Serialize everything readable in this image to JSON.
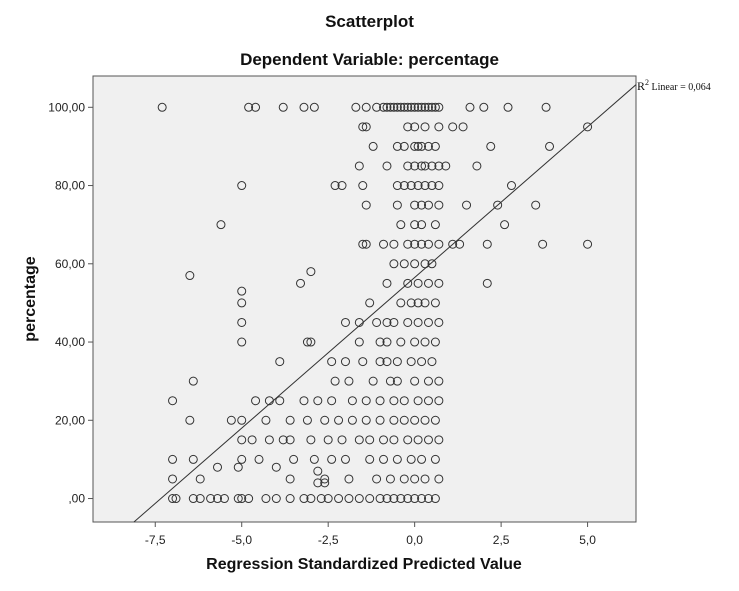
{
  "chart_data": {
    "type": "scatter",
    "title": "Scatterplot",
    "subtitle": "Dependent Variable: percentage",
    "xlabel": "Regression Standardized Predicted Value",
    "ylabel": "percentage",
    "xlim": [
      -9.3,
      6.4
    ],
    "ylim": [
      -6,
      108
    ],
    "x_ticks": [
      -7.5,
      -5.0,
      -2.5,
      0.0,
      2.5,
      5.0
    ],
    "x_tick_labels": [
      "-7,5",
      "-5,0",
      "-2,5",
      "0,0",
      "2,5",
      "5,0"
    ],
    "y_ticks": [
      0,
      20,
      40,
      60,
      80,
      100
    ],
    "y_tick_labels": [
      ",00",
      "20,00",
      "40,00",
      "60,00",
      "80,00",
      "100,00"
    ],
    "grid": false,
    "plot_background": "#f0f0f0",
    "point_color": "#333333",
    "fit_line": {
      "label_r": "R",
      "label_sup": "2",
      "label_text": " Linear = 0,064",
      "slope": 7.7,
      "intercept": 56.5
    },
    "points": [
      [
        -7.3,
        100
      ],
      [
        -4.8,
        100
      ],
      [
        -4.6,
        100
      ],
      [
        -3.8,
        100
      ],
      [
        -3.2,
        100
      ],
      [
        -2.9,
        100
      ],
      [
        -1.7,
        100
      ],
      [
        -1.4,
        100
      ],
      [
        -1.1,
        100
      ],
      [
        -0.9,
        100
      ],
      [
        -0.8,
        100
      ],
      [
        -0.7,
        100
      ],
      [
        -0.6,
        100
      ],
      [
        -0.5,
        100
      ],
      [
        -0.4,
        100
      ],
      [
        -0.3,
        100
      ],
      [
        -0.2,
        100
      ],
      [
        -0.1,
        100
      ],
      [
        0.0,
        100
      ],
      [
        0.1,
        100
      ],
      [
        0.2,
        100
      ],
      [
        0.3,
        100
      ],
      [
        0.4,
        100
      ],
      [
        0.5,
        100
      ],
      [
        0.6,
        100
      ],
      [
        0.7,
        100
      ],
      [
        1.6,
        100
      ],
      [
        2.0,
        100
      ],
      [
        2.7,
        100
      ],
      [
        3.8,
        100
      ],
      [
        -1.5,
        95
      ],
      [
        -1.4,
        95
      ],
      [
        -0.2,
        95
      ],
      [
        0.0,
        95
      ],
      [
        0.3,
        95
      ],
      [
        0.7,
        95
      ],
      [
        1.1,
        95
      ],
      [
        1.4,
        95
      ],
      [
        5.0,
        95
      ],
      [
        -1.2,
        90
      ],
      [
        -0.5,
        90
      ],
      [
        -0.3,
        90
      ],
      [
        0.0,
        90
      ],
      [
        0.1,
        90
      ],
      [
        0.2,
        90
      ],
      [
        0.4,
        90
      ],
      [
        0.6,
        90
      ],
      [
        2.2,
        90
      ],
      [
        3.9,
        90
      ],
      [
        -1.6,
        85
      ],
      [
        -0.8,
        85
      ],
      [
        -0.2,
        85
      ],
      [
        0.0,
        85
      ],
      [
        0.2,
        85
      ],
      [
        0.3,
        85
      ],
      [
        0.5,
        85
      ],
      [
        0.7,
        85
      ],
      [
        0.9,
        85
      ],
      [
        1.8,
        85
      ],
      [
        -5.0,
        80
      ],
      [
        -2.3,
        80
      ],
      [
        -2.1,
        80
      ],
      [
        -1.5,
        80
      ],
      [
        -0.5,
        80
      ],
      [
        -0.3,
        80
      ],
      [
        -0.1,
        80
      ],
      [
        0.1,
        80
      ],
      [
        0.3,
        80
      ],
      [
        0.5,
        80
      ],
      [
        0.7,
        80
      ],
      [
        2.8,
        80
      ],
      [
        -1.4,
        75
      ],
      [
        -0.5,
        75
      ],
      [
        0.0,
        75
      ],
      [
        0.2,
        75
      ],
      [
        0.4,
        75
      ],
      [
        0.7,
        75
      ],
      [
        1.5,
        75
      ],
      [
        2.4,
        75
      ],
      [
        3.5,
        75
      ],
      [
        -5.6,
        70
      ],
      [
        -0.4,
        70
      ],
      [
        0.0,
        70
      ],
      [
        0.2,
        70
      ],
      [
        0.6,
        70
      ],
      [
        2.6,
        70
      ],
      [
        -1.5,
        65
      ],
      [
        -1.4,
        65
      ],
      [
        -0.9,
        65
      ],
      [
        -0.6,
        65
      ],
      [
        -0.2,
        65
      ],
      [
        0.0,
        65
      ],
      [
        0.2,
        65
      ],
      [
        0.4,
        65
      ],
      [
        0.7,
        65
      ],
      [
        1.1,
        65
      ],
      [
        1.3,
        65
      ],
      [
        2.1,
        65
      ],
      [
        3.7,
        65
      ],
      [
        5.0,
        65
      ],
      [
        -0.6,
        60
      ],
      [
        -0.3,
        60
      ],
      [
        0.0,
        60
      ],
      [
        0.3,
        60
      ],
      [
        0.5,
        60
      ],
      [
        -6.5,
        57
      ],
      [
        -3.0,
        58
      ],
      [
        -0.8,
        55
      ],
      [
        -0.2,
        55
      ],
      [
        0.1,
        55
      ],
      [
        0.4,
        55
      ],
      [
        0.7,
        55
      ],
      [
        2.1,
        55
      ],
      [
        -3.3,
        55
      ],
      [
        -5.0,
        53
      ],
      [
        -5.0,
        50
      ],
      [
        -1.3,
        50
      ],
      [
        -0.4,
        50
      ],
      [
        -0.1,
        50
      ],
      [
        0.1,
        50
      ],
      [
        0.3,
        50
      ],
      [
        0.6,
        50
      ],
      [
        -5.0,
        45
      ],
      [
        -2.0,
        45
      ],
      [
        -1.6,
        45
      ],
      [
        -1.1,
        45
      ],
      [
        -0.8,
        45
      ],
      [
        -0.6,
        45
      ],
      [
        -0.2,
        45
      ],
      [
        0.1,
        45
      ],
      [
        0.4,
        45
      ],
      [
        0.7,
        45
      ],
      [
        -5.0,
        40
      ],
      [
        -3.1,
        40
      ],
      [
        -3.0,
        40
      ],
      [
        -1.6,
        40
      ],
      [
        -1.0,
        40
      ],
      [
        -0.8,
        40
      ],
      [
        -0.4,
        40
      ],
      [
        0.0,
        40
      ],
      [
        0.3,
        40
      ],
      [
        0.6,
        40
      ],
      [
        -3.9,
        35
      ],
      [
        -2.4,
        35
      ],
      [
        -2.0,
        35
      ],
      [
        -1.5,
        35
      ],
      [
        -1.0,
        35
      ],
      [
        -0.8,
        35
      ],
      [
        -0.5,
        35
      ],
      [
        -0.1,
        35
      ],
      [
        0.2,
        35
      ],
      [
        0.5,
        35
      ],
      [
        -6.4,
        30
      ],
      [
        -2.3,
        30
      ],
      [
        -1.9,
        30
      ],
      [
        -1.2,
        30
      ],
      [
        -0.7,
        30
      ],
      [
        -0.5,
        30
      ],
      [
        0.0,
        30
      ],
      [
        0.4,
        30
      ],
      [
        0.7,
        30
      ],
      [
        -7.0,
        25
      ],
      [
        -4.6,
        25
      ],
      [
        -4.2,
        25
      ],
      [
        -3.9,
        25
      ],
      [
        -3.2,
        25
      ],
      [
        -2.8,
        25
      ],
      [
        -2.4,
        25
      ],
      [
        -1.8,
        25
      ],
      [
        -1.4,
        25
      ],
      [
        -1.0,
        25
      ],
      [
        -0.6,
        25
      ],
      [
        -0.3,
        25
      ],
      [
        0.1,
        25
      ],
      [
        0.4,
        25
      ],
      [
        0.7,
        25
      ],
      [
        -6.5,
        20
      ],
      [
        -5.3,
        20
      ],
      [
        -5.0,
        20
      ],
      [
        -4.3,
        20
      ],
      [
        -3.6,
        20
      ],
      [
        -3.1,
        20
      ],
      [
        -2.6,
        20
      ],
      [
        -2.2,
        20
      ],
      [
        -1.8,
        20
      ],
      [
        -1.4,
        20
      ],
      [
        -1.0,
        20
      ],
      [
        -0.6,
        20
      ],
      [
        -0.3,
        20
      ],
      [
        0.0,
        20
      ],
      [
        0.3,
        20
      ],
      [
        0.6,
        20
      ],
      [
        -5.0,
        15
      ],
      [
        -4.7,
        15
      ],
      [
        -4.2,
        15
      ],
      [
        -3.8,
        15
      ],
      [
        -3.6,
        15
      ],
      [
        -3.0,
        15
      ],
      [
        -2.5,
        15
      ],
      [
        -2.1,
        15
      ],
      [
        -1.6,
        15
      ],
      [
        -1.3,
        15
      ],
      [
        -0.9,
        15
      ],
      [
        -0.6,
        15
      ],
      [
        -0.2,
        15
      ],
      [
        0.1,
        15
      ],
      [
        0.4,
        15
      ],
      [
        0.7,
        15
      ],
      [
        -7.0,
        10
      ],
      [
        -6.4,
        10
      ],
      [
        -5.0,
        10
      ],
      [
        -4.5,
        10
      ],
      [
        -3.5,
        10
      ],
      [
        -2.9,
        10
      ],
      [
        -2.4,
        10
      ],
      [
        -2.0,
        10
      ],
      [
        -1.3,
        10
      ],
      [
        -0.9,
        10
      ],
      [
        -0.5,
        10
      ],
      [
        -0.1,
        10
      ],
      [
        0.2,
        10
      ],
      [
        0.6,
        10
      ],
      [
        -5.7,
        8
      ],
      [
        -5.1,
        8
      ],
      [
        -4.0,
        8
      ],
      [
        -2.8,
        7
      ],
      [
        -7.0,
        5
      ],
      [
        -6.2,
        5
      ],
      [
        -3.6,
        5
      ],
      [
        -2.6,
        5
      ],
      [
        -1.9,
        5
      ],
      [
        -1.1,
        5
      ],
      [
        -0.7,
        5
      ],
      [
        -0.3,
        5
      ],
      [
        0.0,
        5
      ],
      [
        0.3,
        5
      ],
      [
        0.7,
        5
      ],
      [
        -2.8,
        4
      ],
      [
        -2.6,
        4
      ],
      [
        -7.0,
        0
      ],
      [
        -6.9,
        0
      ],
      [
        -6.4,
        0
      ],
      [
        -6.2,
        0
      ],
      [
        -5.9,
        0
      ],
      [
        -5.7,
        0
      ],
      [
        -5.5,
        0
      ],
      [
        -5.1,
        0
      ],
      [
        -5.0,
        0
      ],
      [
        -4.8,
        0
      ],
      [
        -4.3,
        0
      ],
      [
        -4.0,
        0
      ],
      [
        -3.6,
        0
      ],
      [
        -3.2,
        0
      ],
      [
        -3.0,
        0
      ],
      [
        -2.7,
        0
      ],
      [
        -2.5,
        0
      ],
      [
        -2.2,
        0
      ],
      [
        -1.9,
        0
      ],
      [
        -1.6,
        0
      ],
      [
        -1.3,
        0
      ],
      [
        -1.0,
        0
      ],
      [
        -0.8,
        0
      ],
      [
        -0.6,
        0
      ],
      [
        -0.4,
        0
      ],
      [
        -0.2,
        0
      ],
      [
        0.0,
        0
      ],
      [
        0.2,
        0
      ],
      [
        0.4,
        0
      ],
      [
        0.6,
        0
      ]
    ]
  }
}
